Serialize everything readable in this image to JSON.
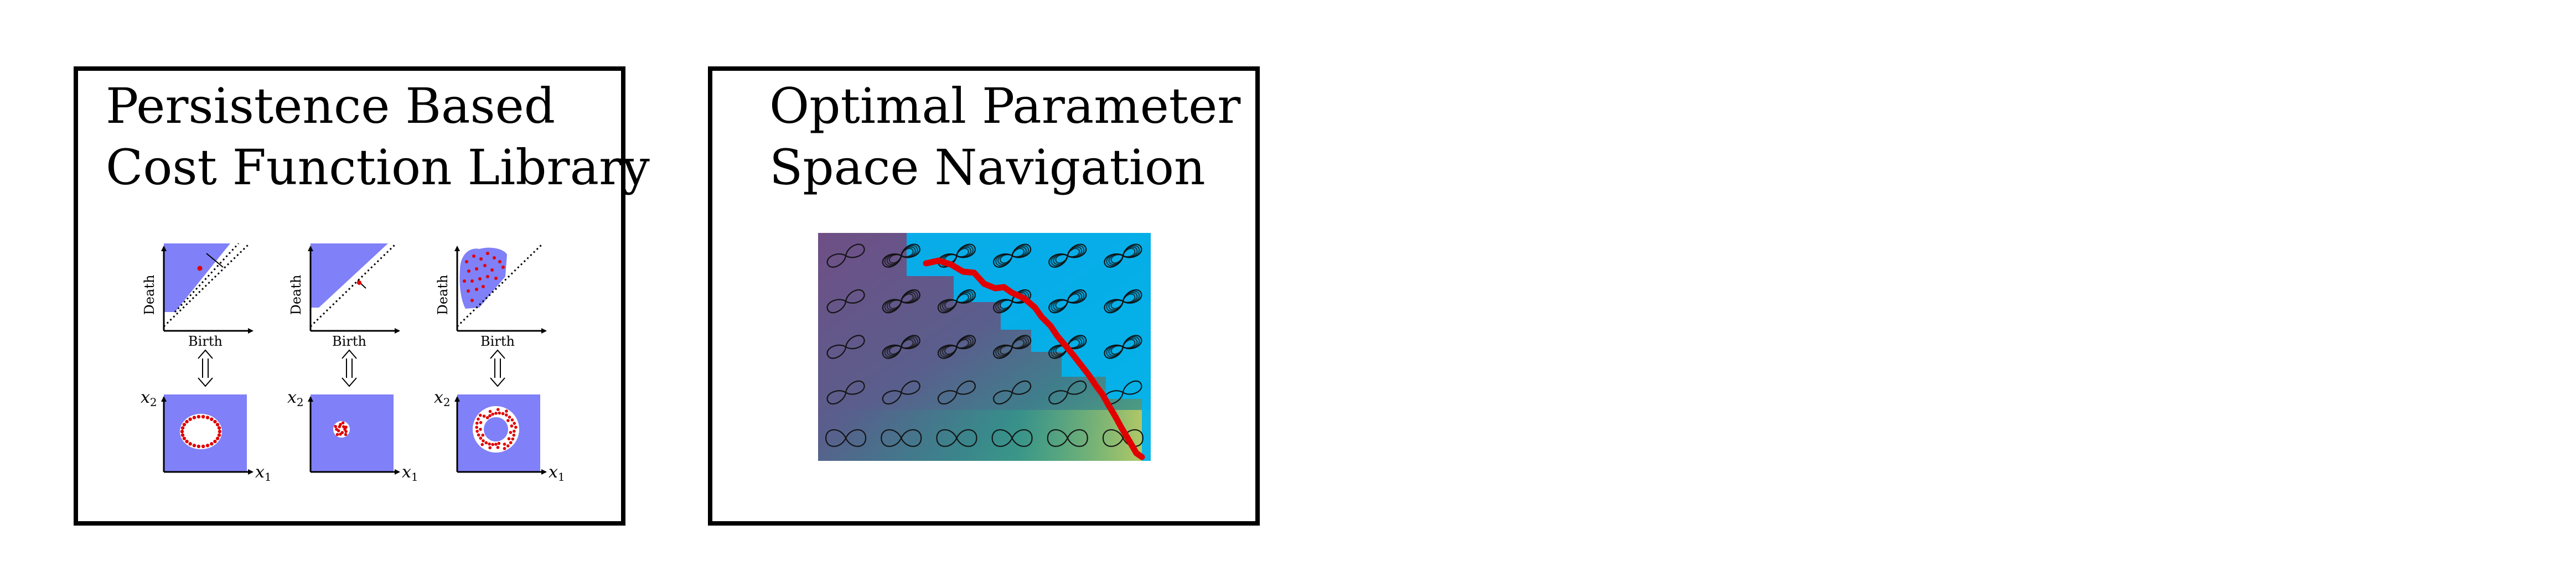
{
  "left_panel": {
    "title_line1": "Persistence Based",
    "title_line2": "Cost Function Library",
    "diagrams": [
      {
        "ylabel": "Death",
        "xlabel": "Birth"
      },
      {
        "ylabel": "Death",
        "xlabel": "Birth"
      },
      {
        "ylabel": "Death",
        "xlabel": "Birth"
      }
    ],
    "scatter_axis_x": "x",
    "scatter_axis_x_sub": "1",
    "scatter_axis_y": "x",
    "scatter_axis_y_sub": "2"
  },
  "right_panel": {
    "title_line1": "Optimal Parameter",
    "title_line2": "Space Navigation"
  },
  "colors": {
    "region_fill": "#8080f8",
    "point_red": "#e00000",
    "path_red": "#e00000",
    "highlight_cyan": "#00b4f0"
  }
}
